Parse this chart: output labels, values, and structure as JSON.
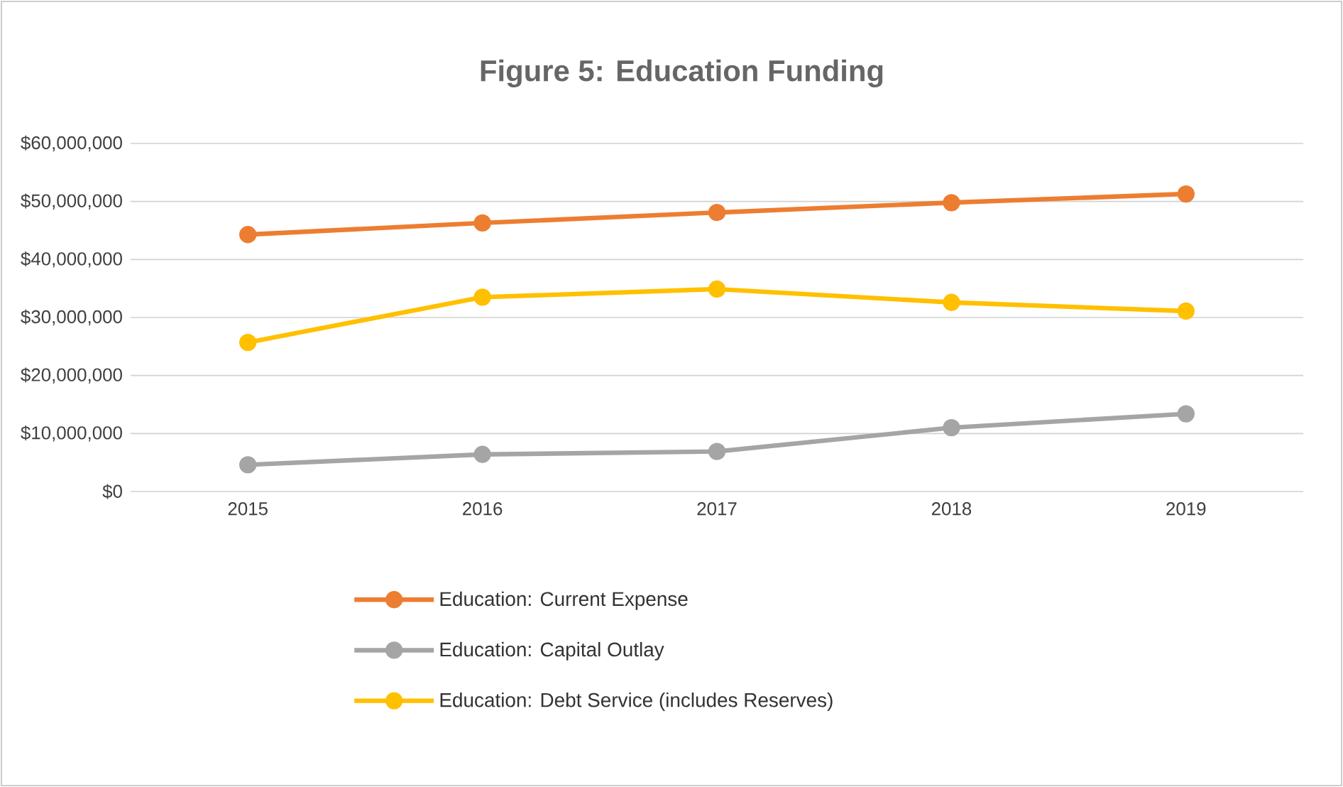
{
  "chart_data": {
    "type": "line",
    "title": "Figure 5:  Education Funding",
    "categories": [
      "2015",
      "2016",
      "2017",
      "2018",
      "2019"
    ],
    "series": [
      {
        "name": "Education: Current Expense",
        "color": "#ed7d31",
        "values": [
          44300000,
          46300000,
          48100000,
          49800000,
          51300000
        ]
      },
      {
        "name": "Education: Capital Outlay",
        "color": "#a5a5a5",
        "values": [
          4600000,
          6400000,
          6900000,
          11000000,
          13400000
        ]
      },
      {
        "name": "Education: Debt Service (includes Reserves)",
        "color": "#ffc000",
        "values": [
          25700000,
          33500000,
          34900000,
          32600000,
          31100000
        ]
      }
    ],
    "ylim": [
      0,
      60000000
    ],
    "yticks": [
      {
        "value": 0,
        "label": "$0"
      },
      {
        "value": 10000000,
        "label": "$10,000,000"
      },
      {
        "value": 20000000,
        "label": "$20,000,000"
      },
      {
        "value": 30000000,
        "label": "$30,000,000"
      },
      {
        "value": 40000000,
        "label": "$40,000,000"
      },
      {
        "value": 50000000,
        "label": "$50,000,000"
      },
      {
        "value": 60000000,
        "label": "$60,000,000"
      }
    ],
    "grid": "y",
    "legend": "bottom",
    "marker": "circle",
    "line_style": "solid"
  }
}
